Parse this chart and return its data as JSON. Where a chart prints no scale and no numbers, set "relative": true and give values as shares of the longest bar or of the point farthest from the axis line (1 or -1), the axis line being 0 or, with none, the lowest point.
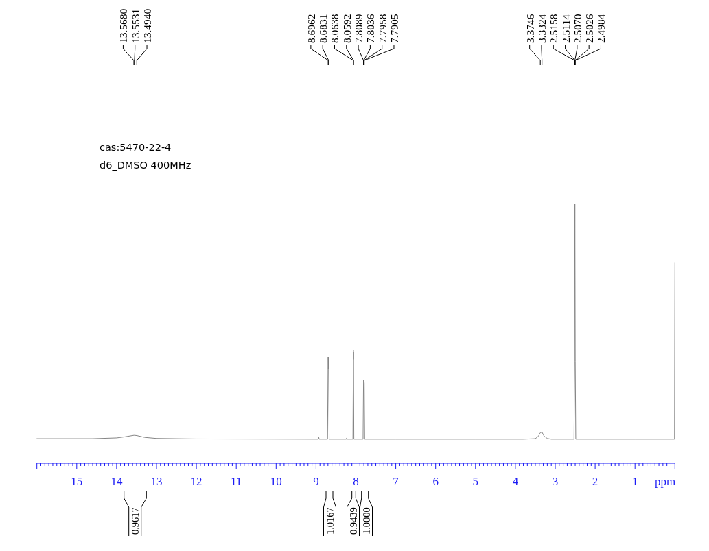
{
  "chart_data": {
    "type": "line",
    "relative": true,
    "xlabel": "ppm",
    "xlim": [
      16,
      0
    ],
    "xticks": [
      {
        "value": 16,
        "label": null
      },
      {
        "value": 15.9,
        "label": null
      },
      {
        "value": 15.8,
        "label": null
      },
      {
        "value": 15.7,
        "label": null
      },
      {
        "value": 15.6,
        "label": null
      },
      {
        "value": 15.5,
        "label": null
      },
      {
        "value": 15.4,
        "label": null
      },
      {
        "value": 15.3,
        "label": null
      },
      {
        "value": 15.2,
        "label": null
      },
      {
        "value": 15.1,
        "label": null
      },
      15,
      {
        "value": 14.9,
        "label": null
      },
      {
        "value": 14.8,
        "label": null
      },
      {
        "value": 14.7,
        "label": null
      },
      {
        "value": 14.6,
        "label": null
      },
      {
        "value": 14.5,
        "label": null
      },
      {
        "value": 14.4,
        "label": null
      },
      {
        "value": 14.3,
        "label": null
      },
      {
        "value": 14.2,
        "label": null
      },
      {
        "value": 14.1,
        "label": null
      },
      14,
      {
        "value": 13.9,
        "label": null
      },
      {
        "value": 13.8,
        "label": null
      },
      {
        "value": 13.7,
        "label": null
      },
      {
        "value": 13.6,
        "label": null
      },
      {
        "value": 13.5,
        "label": null
      },
      {
        "value": 13.4,
        "label": null
      },
      {
        "value": 13.3,
        "label": null
      },
      {
        "value": 13.2,
        "label": null
      },
      {
        "value": 13.1,
        "label": null
      },
      13,
      {
        "value": 12.9,
        "label": null
      },
      {
        "value": 12.8,
        "label": null
      },
      {
        "value": 12.7,
        "label": null
      },
      {
        "value": 12.6,
        "label": null
      },
      {
        "value": 12.5,
        "label": null
      },
      {
        "value": 12.4,
        "label": null
      },
      {
        "value": 12.3,
        "label": null
      },
      {
        "value": 12.2,
        "label": null
      },
      {
        "value": 12.1,
        "label": null
      },
      12,
      {
        "value": 11.9,
        "label": null
      },
      {
        "value": 11.8,
        "label": null
      },
      {
        "value": 11.7,
        "label": null
      },
      {
        "value": 11.6,
        "label": null
      },
      {
        "value": 11.5,
        "label": null
      },
      {
        "value": 11.4,
        "label": null
      },
      {
        "value": 11.3,
        "label": null
      },
      {
        "value": 11.2,
        "label": null
      },
      {
        "value": 11.1,
        "label": null
      },
      11,
      {
        "value": 10.9,
        "label": null
      },
      {
        "value": 10.8,
        "label": null
      },
      {
        "value": 10.7,
        "label": null
      },
      {
        "value": 10.6,
        "label": null
      },
      {
        "value": 10.5,
        "label": null
      },
      {
        "value": 10.4,
        "label": null
      },
      {
        "value": 10.3,
        "label": null
      },
      {
        "value": 10.2,
        "label": null
      },
      {
        "value": 10.1,
        "label": null
      },
      10,
      {
        "value": 9.9,
        "label": null
      },
      {
        "value": 9.8,
        "label": null
      },
      {
        "value": 9.7,
        "label": null
      },
      {
        "value": 9.6,
        "label": null
      },
      {
        "value": 9.5,
        "label": null
      },
      {
        "value": 9.4,
        "label": null
      },
      {
        "value": 9.3,
        "label": null
      },
      {
        "value": 9.2,
        "label": null
      },
      {
        "value": 9.1,
        "label": null
      },
      9,
      {
        "value": 8.9,
        "label": null
      },
      {
        "value": 8.8,
        "label": null
      },
      {
        "value": 8.7,
        "label": null
      },
      {
        "value": 8.6,
        "label": null
      },
      {
        "value": 8.5,
        "label": null
      },
      {
        "value": 8.4,
        "label": null
      },
      {
        "value": 8.3,
        "label": null
      },
      {
        "value": 8.2,
        "label": null
      },
      {
        "value": 8.1,
        "label": null
      },
      8,
      {
        "value": 7.9,
        "label": null
      },
      {
        "value": 7.8,
        "label": null
      },
      {
        "value": 7.7,
        "label": null
      },
      {
        "value": 7.6,
        "label": null
      },
      {
        "value": 7.5,
        "label": null
      },
      {
        "value": 7.4,
        "label": null
      },
      {
        "value": 7.3,
        "label": null
      },
      {
        "value": 7.2,
        "label": null
      },
      {
        "value": 7.1,
        "label": null
      },
      7,
      {
        "value": 6.9,
        "label": null
      },
      {
        "value": 6.8,
        "label": null
      },
      {
        "value": 6.7,
        "label": null
      },
      {
        "value": 6.6,
        "label": null
      },
      {
        "value": 6.5,
        "label": null
      },
      {
        "value": 6.4,
        "label": null
      },
      {
        "value": 6.3,
        "label": null
      },
      {
        "value": 6.2,
        "label": null
      },
      {
        "value": 6.1,
        "label": null
      },
      6,
      {
        "value": 5.9,
        "label": null
      },
      {
        "value": 5.8,
        "label": null
      },
      {
        "value": 5.7,
        "label": null
      },
      {
        "value": 5.6,
        "label": null
      },
      {
        "value": 5.5,
        "label": null
      },
      {
        "value": 5.4,
        "label": null
      },
      {
        "value": 5.3,
        "label": null
      },
      {
        "value": 5.2,
        "label": null
      },
      {
        "value": 5.1,
        "label": null
      },
      5,
      {
        "value": 4.9,
        "label": null
      },
      {
        "value": 4.8,
        "label": null
      },
      {
        "value": 4.7,
        "label": null
      },
      {
        "value": 4.6,
        "label": null
      },
      {
        "value": 4.5,
        "label": null
      },
      {
        "value": 4.4,
        "label": null
      },
      {
        "value": 4.3,
        "label": null
      },
      {
        "value": 4.2,
        "label": null
      },
      {
        "value": 4.1,
        "label": null
      },
      4,
      {
        "value": 3.9,
        "label": null
      },
      {
        "value": 3.8,
        "label": null
      },
      {
        "value": 3.7,
        "label": null
      },
      {
        "value": 3.6,
        "label": null
      },
      {
        "value": 3.5,
        "label": null
      },
      {
        "value": 3.4,
        "label": null
      },
      {
        "value": 3.3,
        "label": null
      },
      {
        "value": 3.2,
        "label": null
      },
      {
        "value": 3.1,
        "label": null
      },
      3,
      {
        "value": 2.9,
        "label": null
      },
      {
        "value": 2.8,
        "label": null
      },
      {
        "value": 2.7,
        "label": null
      },
      {
        "value": 2.6,
        "label": null
      },
      {
        "value": 2.5,
        "label": null
      },
      {
        "value": 2.4,
        "label": null
      },
      {
        "value": 2.3,
        "label": null
      },
      {
        "value": 2.2,
        "label": null
      },
      {
        "value": 2.1,
        "label": null
      },
      2,
      {
        "value": 1.9,
        "label": null
      },
      {
        "value": 1.8,
        "label": null
      },
      {
        "value": 1.7,
        "label": null
      },
      {
        "value": 1.6,
        "label": null
      },
      {
        "value": 1.5,
        "label": null
      },
      {
        "value": 1.4,
        "label": null
      },
      {
        "value": 1.3,
        "label": null
      },
      {
        "value": 1.2,
        "label": null
      },
      {
        "value": 1.1,
        "label": null
      },
      1,
      {
        "value": 0.9,
        "label": null
      },
      {
        "value": 0.8,
        "label": null
      },
      {
        "value": 0.7,
        "label": null
      },
      {
        "value": 0.6,
        "label": null
      },
      {
        "value": 0.5,
        "label": null
      },
      {
        "value": 0.4,
        "label": null
      },
      {
        "value": 0.3,
        "label": null
      },
      {
        "value": 0.2,
        "label": null
      },
      {
        "value": 0.1,
        "label": null
      },
      {
        "value": 0,
        "label": null
      }
    ],
    "x": [
      16.0,
      14.6,
      14.0,
      13.8,
      13.568,
      13.5531,
      13.494,
      13.3,
      13.0,
      12.0,
      9.0,
      8.94,
      8.93,
      8.92,
      8.71,
      8.6962,
      8.69,
      8.6831,
      8.67,
      8.24,
      8.23,
      8.22,
      8.075,
      8.0638,
      8.0615,
      8.0592,
      8.05,
      7.82,
      7.8089,
      7.8036,
      7.7958,
      7.7905,
      7.78,
      7.0,
      5.0,
      3.8,
      3.5,
      3.42,
      3.3746,
      3.3324,
      3.28,
      3.2,
      3.1,
      2.53,
      2.5158,
      2.5114,
      2.507,
      2.5026,
      2.4984,
      2.485,
      2.0,
      1.0,
      0.01,
      0.0
    ],
    "series": [
      {
        "color": "#858585",
        "values": [
          0.095,
          0.095,
          0.098,
          0.102,
          0.108,
          0.108,
          0.107,
          0.1,
          0.096,
          0.094,
          0.093,
          0.093,
          0.1,
          0.093,
          0.093,
          0.41,
          0.365,
          0.41,
          0.093,
          0.093,
          0.098,
          0.093,
          0.093,
          0.438,
          0.401,
          0.429,
          0.093,
          0.093,
          0.32,
          0.32,
          0.311,
          0.311,
          0.093,
          0.093,
          0.093,
          0.093,
          0.095,
          0.105,
          0.118,
          0.12,
          0.105,
          0.096,
          0.093,
          0.093,
          0.392,
          0.701,
          1.0,
          0.701,
          0.392,
          0.093,
          0.093,
          0.093,
          0.093,
          0.773
        ]
      }
    ],
    "annotations": [
      "cas:5470-22-4",
      "d6_DMSO 400MHz",
      "13.5680",
      "13.5531",
      "13.4940",
      "8.6962",
      "8.6831",
      "8.0638",
      "8.0592",
      "7.8089",
      "7.8036",
      "7.7958",
      "7.7905",
      "3.3746",
      "3.3324",
      "2.5158",
      "2.5114",
      "2.5070",
      "2.5026",
      "2.4984",
      "0.9617",
      "1.0167",
      "0.9439",
      "1.0000"
    ]
  }
}
